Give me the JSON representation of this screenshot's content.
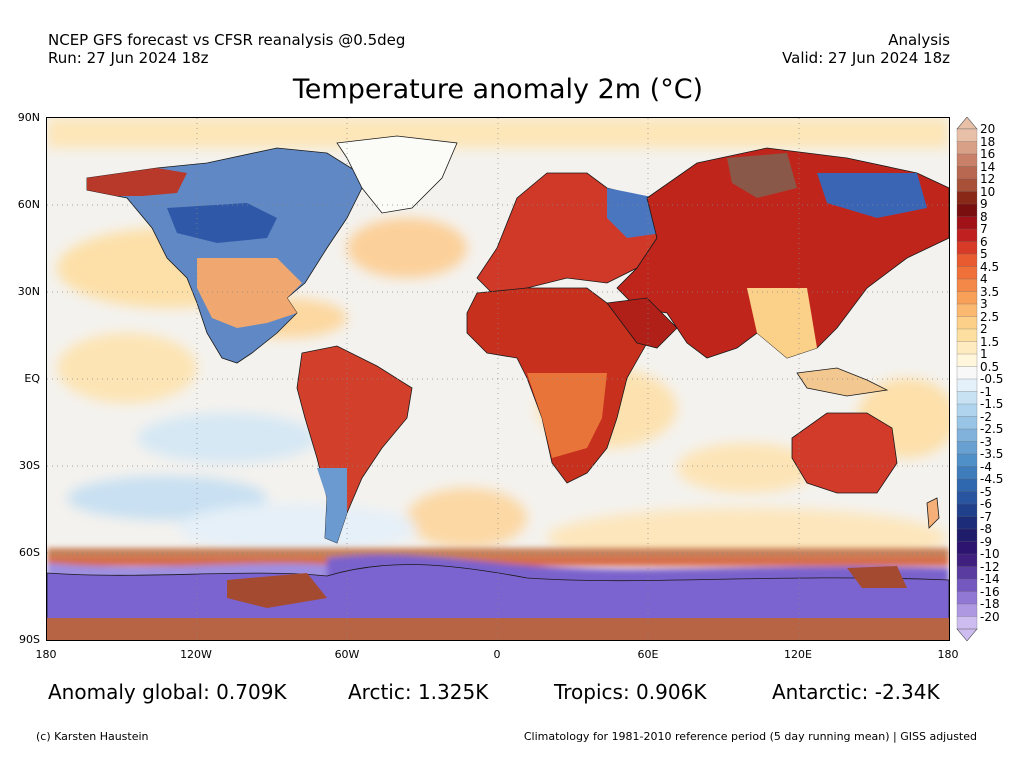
{
  "header": {
    "left_line1": "NCEP GFS forecast vs CFSR reanalysis @0.5deg",
    "left_line2": "Run: 27 Jun 2024 18z",
    "right_line1": "Analysis",
    "right_line2": "Valid: 27 Jun 2024 18z"
  },
  "title": "Temperature anomaly 2m (°C)",
  "axes": {
    "lat_labels": [
      "90N",
      "60N",
      "30N",
      "EQ",
      "30S",
      "60S",
      "90S"
    ],
    "lon_labels": [
      "180",
      "120W",
      "60W",
      "0",
      "60E",
      "120E",
      "180"
    ]
  },
  "colorbar": {
    "labels": [
      "20",
      "18",
      "16",
      "14",
      "12",
      "10",
      "9",
      "8",
      "7",
      "6",
      "5",
      "4.5",
      "4",
      "3.5",
      "3",
      "2.5",
      "2",
      "1.5",
      "1",
      "0.5",
      "-0.5",
      "-1",
      "-1.5",
      "-2",
      "-2.5",
      "-3",
      "-3.5",
      "-4",
      "-4.5",
      "-5",
      "-6",
      "-7",
      "-8",
      "-9",
      "-10",
      "-12",
      "-14",
      "-16",
      "-18",
      "-20"
    ],
    "colors": [
      "#e8c0a8",
      "#d9a088",
      "#c88068",
      "#b86850",
      "#a85038",
      "#8a2818",
      "#7a0f10",
      "#a01218",
      "#c0201f",
      "#d83a28",
      "#e85a30",
      "#f0703a",
      "#f48848",
      "#f8a058",
      "#fab870",
      "#fcd088",
      "#fde0a0",
      "#feecc0",
      "#fff6dc",
      "#f8f8f8",
      "#e4f0fa",
      "#c8e2f4",
      "#b0d4ee",
      "#98c4e6",
      "#80b2dc",
      "#68a0d2",
      "#5090c8",
      "#3e7cbc",
      "#3068b0",
      "#2854a0",
      "#20408c",
      "#1c2c78",
      "#201c6c",
      "#2c1470",
      "#40207e",
      "#5a3ca0",
      "#7458c0",
      "#9078d4",
      "#ae98e2",
      "#ccbcf0"
    ]
  },
  "stats": {
    "global": "Anomaly global: 0.709K",
    "arctic": "Arctic: 1.325K",
    "tropics": "Tropics: 0.906K",
    "antarctic": "Antarctic: -2.34K"
  },
  "footer": {
    "left": "(c) Karsten Haustein",
    "right": "Climatology for 1981-2010 reference period (5 day running mean) | GISS adjusted"
  }
}
